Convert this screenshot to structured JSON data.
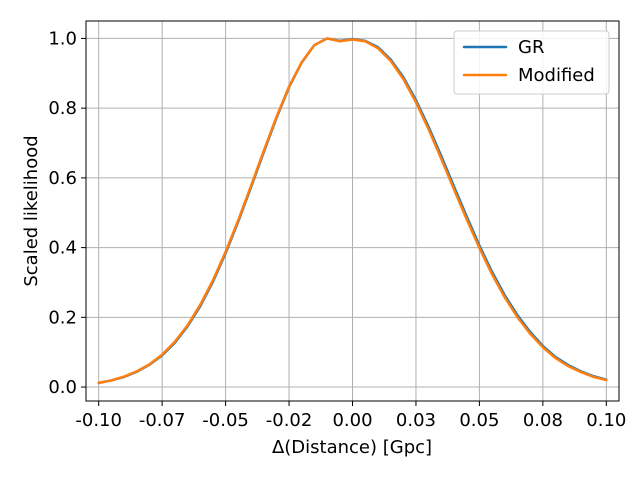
{
  "chart_data": {
    "type": "line",
    "xlabel": "Δ(Distance) [Gpc]",
    "ylabel": "Scaled likelihood",
    "xlim": [
      -0.105,
      0.105
    ],
    "ylim": [
      -0.04,
      1.05
    ],
    "grid": true,
    "legend_position": "top-right",
    "x_tick_values": [
      -0.1,
      -0.075,
      -0.05,
      -0.025,
      0.0,
      0.025,
      0.05,
      0.075,
      0.1
    ],
    "x_tick_labels": [
      "-0.10",
      "-0.07",
      "-0.05",
      "-0.02",
      "0.00",
      "0.03",
      "0.05",
      "0.08",
      "0.10"
    ],
    "y_tick_values": [
      0.0,
      0.2,
      0.4,
      0.6,
      0.8,
      1.0
    ],
    "y_tick_labels": [
      "0.0",
      "0.2",
      "0.4",
      "0.6",
      "0.8",
      "1.0"
    ],
    "x": [
      -0.1,
      -0.095,
      -0.09,
      -0.085,
      -0.08,
      -0.075,
      -0.07,
      -0.065,
      -0.06,
      -0.055,
      -0.05,
      -0.045,
      -0.04,
      -0.035,
      -0.03,
      -0.025,
      -0.02,
      -0.015,
      -0.01,
      -0.005,
      0.0,
      0.005,
      0.01,
      0.015,
      0.02,
      0.025,
      0.03,
      0.035,
      0.04,
      0.045,
      0.05,
      0.055,
      0.06,
      0.065,
      0.07,
      0.075,
      0.08,
      0.085,
      0.09,
      0.095,
      0.1
    ],
    "series": [
      {
        "name": "GR",
        "color": "#1f77b4",
        "values": [
          0.012,
          0.019,
          0.029,
          0.044,
          0.064,
          0.091,
          0.127,
          0.174,
          0.232,
          0.302,
          0.384,
          0.475,
          0.573,
          0.673,
          0.771,
          0.86,
          0.931,
          0.981,
          1.0,
          0.993,
          0.998,
          0.993,
          0.975,
          0.94,
          0.889,
          0.823,
          0.746,
          0.662,
          0.575,
          0.489,
          0.406,
          0.33,
          0.263,
          0.206,
          0.158,
          0.118,
          0.086,
          0.063,
          0.045,
          0.031,
          0.021
        ]
      },
      {
        "name": "Modified",
        "color": "#ff7f0e",
        "values": [
          0.012,
          0.019,
          0.03,
          0.045,
          0.065,
          0.093,
          0.13,
          0.177,
          0.236,
          0.306,
          0.388,
          0.479,
          0.577,
          0.677,
          0.774,
          0.862,
          0.932,
          0.981,
          1.0,
          0.992,
          0.997,
          0.992,
          0.972,
          0.936,
          0.884,
          0.817,
          0.739,
          0.654,
          0.567,
          0.481,
          0.399,
          0.323,
          0.257,
          0.2,
          0.153,
          0.114,
          0.083,
          0.06,
          0.043,
          0.029,
          0.02
        ]
      }
    ]
  }
}
